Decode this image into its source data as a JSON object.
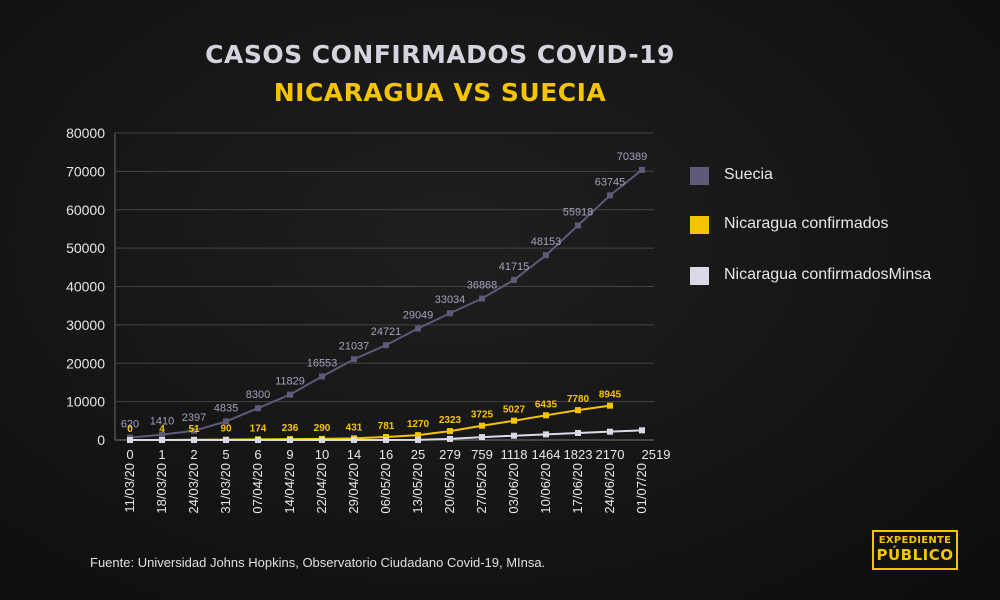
{
  "title_line1": "CASOS CONFIRMADOS COVID-19",
  "title_line2": "NICARAGUA VS SUECIA",
  "source": "Fuente: Universidad Johns Hopkins, Observatorio Ciudadano Covid-19, MInsa.",
  "logo": {
    "line1": "EXPEDIENTE",
    "line2": "PÚBLICO"
  },
  "chart_data": {
    "type": "line",
    "x": [
      "11/03/20",
      "18/03/20",
      "24/03/20",
      "31/03/20",
      "07/04/20",
      "14/04/20",
      "22/04/20",
      "29/04/20",
      "06/05/20",
      "13/05/20",
      "20/05/20",
      "27/05/20",
      "03/06/20",
      "10/06/20",
      "17/06/20",
      "24/06/20",
      "01/07/20"
    ],
    "ylim": [
      0,
      80000
    ],
    "yticks": [
      0,
      10000,
      20000,
      30000,
      40000,
      50000,
      60000,
      70000,
      80000
    ],
    "grid": true,
    "legend_position": "right",
    "series": [
      {
        "name": "Suecia",
        "color": "#5e5a77",
        "label_color": "#a4a1bd",
        "values": [
          620,
          1410,
          2397,
          4835,
          8300,
          11829,
          16553,
          21037,
          24721,
          29049,
          33034,
          36868,
          41715,
          48153,
          55918,
          63745,
          70389
        ]
      },
      {
        "name": "Nicaragua  confirmados",
        "color": "#f5c400",
        "label_color": "#f5c400",
        "values": [
          0,
          4,
          51,
          90,
          174,
          236,
          290,
          431,
          781,
          1270,
          2323,
          3725,
          5027,
          6435,
          7780,
          8945,
          null
        ]
      },
      {
        "name": "Nicaragua  confirmadosMinsa",
        "color": "#dcd9e6",
        "label_color": "#e8e8e8",
        "values": [
          0,
          1,
          2,
          5,
          6,
          9,
          10,
          14,
          16,
          25,
          279,
          759,
          1118,
          1464,
          1823,
          2170,
          2519
        ]
      }
    ]
  }
}
